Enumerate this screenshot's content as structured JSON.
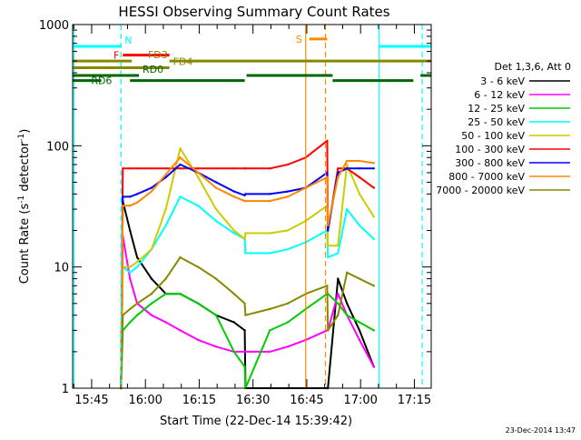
{
  "chart_data": {
    "type": "line",
    "title": "HESSI Observing Summary Count Rates",
    "xlabel": "Start Time (22-Dec-14 15:39:42)",
    "ylabel": "Count Rate (s⁻¹ detector⁻¹)",
    "ylabel_parts": {
      "main": "Count Rate (s",
      "sup1": "-1",
      "mid": " detector",
      "sup2": "-1",
      "end": ")"
    },
    "x_units": "minutes since 15:39:42",
    "xlim": [
      0,
      100
    ],
    "ylim": [
      1,
      1000
    ],
    "y_scale": "log",
    "grid": false,
    "x_ticks": [
      {
        "value": 5.3,
        "label": "15:45"
      },
      {
        "value": 20.3,
        "label": "16:00"
      },
      {
        "value": 35.3,
        "label": "16:15"
      },
      {
        "value": 50.3,
        "label": "16:30"
      },
      {
        "value": 65.3,
        "label": "16:45"
      },
      {
        "value": 80.3,
        "label": "17:00"
      },
      {
        "value": 95.3,
        "label": "17:15"
      }
    ],
    "y_ticks": [
      {
        "value": 1,
        "label": "1"
      },
      {
        "value": 10,
        "label": "10"
      },
      {
        "value": 100,
        "label": "100"
      },
      {
        "value": 1000,
        "label": "1000"
      }
    ],
    "legend_header": "Det 1,3,6, Att 0",
    "legend_position": "right",
    "series": [
      {
        "name": "3 - 6 keV",
        "color": "#000000",
        "x": [
          13.5,
          14,
          16,
          18,
          22,
          26,
          30,
          35,
          40,
          45,
          48,
          48.2,
          55,
          60,
          65,
          71,
          71.2,
          74,
          76.5,
          80,
          84
        ],
        "y": [
          1,
          35,
          20,
          12,
          8,
          6,
          6,
          5,
          4,
          3.5,
          3,
          1,
          1,
          1,
          1,
          1,
          1,
          8,
          5,
          3,
          1.5
        ]
      },
      {
        "name": "6 - 12 keV",
        "color": "#ff00ff",
        "x": [
          13.5,
          14,
          16,
          18,
          22,
          26,
          30,
          35,
          40,
          45,
          48,
          48.2,
          55,
          60,
          65,
          71,
          71.2,
          74,
          76.5,
          80,
          84
        ],
        "y": [
          1,
          18,
          8,
          5,
          4,
          3.5,
          3,
          2.5,
          2.2,
          2,
          2,
          2,
          2,
          2.2,
          2.5,
          3,
          3,
          6,
          4,
          2.5,
          1.5
        ]
      },
      {
        "name": "12 - 25 keV",
        "color": "#00cc00",
        "x": [
          13.5,
          14,
          16,
          18,
          22,
          26,
          30,
          35,
          40,
          45,
          48,
          48.2,
          55,
          60,
          65,
          71,
          71.2,
          74,
          76.5,
          80,
          84
        ],
        "y": [
          1,
          3,
          3.5,
          4,
          5,
          6,
          6,
          5,
          4,
          2,
          1.5,
          1,
          3,
          3.5,
          4.5,
          6,
          6,
          5,
          4,
          3.5,
          3
        ]
      },
      {
        "name": "25 - 50 keV",
        "color": "#00ffff",
        "x": [
          13.5,
          14,
          16,
          18,
          22,
          26,
          30,
          35,
          40,
          45,
          48,
          48.2,
          55,
          60,
          65,
          71,
          71.2,
          74,
          76.5,
          80,
          84
        ],
        "y": [
          1,
          10,
          9,
          10,
          14,
          22,
          38,
          32,
          24,
          19,
          17,
          13,
          13,
          14,
          16,
          20,
          12,
          13,
          30,
          22,
          17
        ]
      },
      {
        "name": "50 - 100 keV",
        "color": "#cccc00",
        "x": [
          13.5,
          14,
          16,
          18,
          22,
          26,
          30,
          35,
          40,
          45,
          48,
          48.2,
          55,
          60,
          65,
          71,
          71.2,
          74,
          76.5,
          80,
          84
        ],
        "y": [
          1,
          10,
          10,
          11,
          14,
          30,
          95,
          55,
          30,
          20,
          17,
          19,
          19,
          20,
          24,
          32,
          15,
          15,
          70,
          40,
          26
        ]
      },
      {
        "name": "100 - 300 keV",
        "color": "#ff0000",
        "x": [
          13.5,
          14,
          16,
          18,
          22,
          26,
          30,
          35,
          40,
          45,
          48,
          48.2,
          55,
          60,
          65,
          71,
          71.2,
          74,
          76.5,
          80,
          84
        ],
        "y": [
          1,
          65,
          65,
          65,
          65,
          65,
          65,
          65,
          65,
          65,
          65,
          65,
          65,
          70,
          80,
          110,
          20,
          65,
          65,
          55,
          45
        ]
      },
      {
        "name": "300 - 800 keV",
        "color": "#0000ff",
        "x": [
          13.5,
          14,
          16,
          18,
          22,
          26,
          30,
          35,
          40,
          45,
          48,
          48.2,
          55,
          60,
          65,
          71,
          71.2,
          74,
          76.5,
          80,
          84
        ],
        "y": [
          1,
          38,
          38,
          40,
          45,
          55,
          70,
          60,
          50,
          42,
          39,
          40,
          40,
          42,
          45,
          60,
          20,
          60,
          65,
          65,
          65
        ]
      },
      {
        "name": "800 - 7000 keV",
        "color": "#ff8800",
        "x": [
          13.5,
          14,
          16,
          18,
          22,
          26,
          30,
          35,
          40,
          45,
          48,
          48.2,
          55,
          60,
          65,
          71,
          71.2,
          74,
          76.5,
          80,
          84
        ],
        "y": [
          1,
          32,
          32,
          34,
          42,
          58,
          80,
          60,
          45,
          38,
          35,
          35,
          35,
          38,
          45,
          55,
          22,
          55,
          75,
          75,
          72
        ]
      },
      {
        "name": "7000 - 20000 keV",
        "color": "#888800",
        "x": [
          13.5,
          14,
          16,
          18,
          22,
          26,
          30,
          35,
          40,
          45,
          48,
          48.2,
          55,
          60,
          65,
          71,
          71.2,
          74,
          76.5,
          80,
          84
        ],
        "y": [
          1,
          4,
          4.5,
          5,
          6,
          8,
          12,
          10,
          8,
          6,
          5,
          4,
          4.5,
          5,
          6,
          7,
          3,
          4,
          9,
          8,
          7
        ]
      }
    ],
    "flag_bars": [
      {
        "label": "N",
        "color": "#00ffff",
        "segments": [
          [
            0,
            13.5
          ],
          [
            85.5,
            100
          ]
        ],
        "y": 660,
        "label_x": 14.5,
        "label_side": "right"
      },
      {
        "label": "F",
        "color": "#ff0000",
        "segments": [
          [
            14,
            27
          ]
        ],
        "y": 560,
        "label_x": 13,
        "label_side": "left"
      },
      {
        "label": "S",
        "color": "#ff8800",
        "segments": [
          [
            66,
            71
          ]
        ],
        "y": 760,
        "label_x": 64,
        "label_side": "left"
      },
      {
        "label": "FD3",
        "color": "#888800",
        "segments": [
          [
            0,
            16.5
          ],
          [
            27,
            100
          ]
        ],
        "y": 500,
        "label_x": 21,
        "label_side": "right"
      },
      {
        "label": "FD4",
        "color": "#888800",
        "segments": [
          [
            0,
            27
          ]
        ],
        "y": 440,
        "label_x": 28,
        "label_side": "right"
      },
      {
        "label": "RD0",
        "color": "#006600",
        "segments": [
          [
            0,
            18.5
          ],
          [
            48.5,
            72.5
          ],
          [
            97,
            100
          ]
        ],
        "y": 380,
        "label_x": 19.5,
        "label_side": "right"
      },
      {
        "label": "RD6",
        "color": "#006600",
        "segments": [
          [
            0,
            8
          ],
          [
            16,
            48
          ],
          [
            72.5,
            95
          ]
        ],
        "y": 345,
        "label_x": 11,
        "label_side": "left"
      }
    ],
    "vertical_markers": [
      {
        "x": 0.4,
        "color": "#00ffff",
        "style": "solid"
      },
      {
        "x": 13.5,
        "color": "#00ffff",
        "style": "dashed"
      },
      {
        "x": 65,
        "color": "#ff8800",
        "style": "solid"
      },
      {
        "x": 70.5,
        "color": "#ff8800",
        "style": "dashed"
      },
      {
        "x": 85.5,
        "color": "#00ffff",
        "style": "solid"
      },
      {
        "x": 97.5,
        "color": "#00ffff",
        "style": "dashed"
      }
    ]
  },
  "footer_timestamp": "23-Dec-2014 13:47"
}
